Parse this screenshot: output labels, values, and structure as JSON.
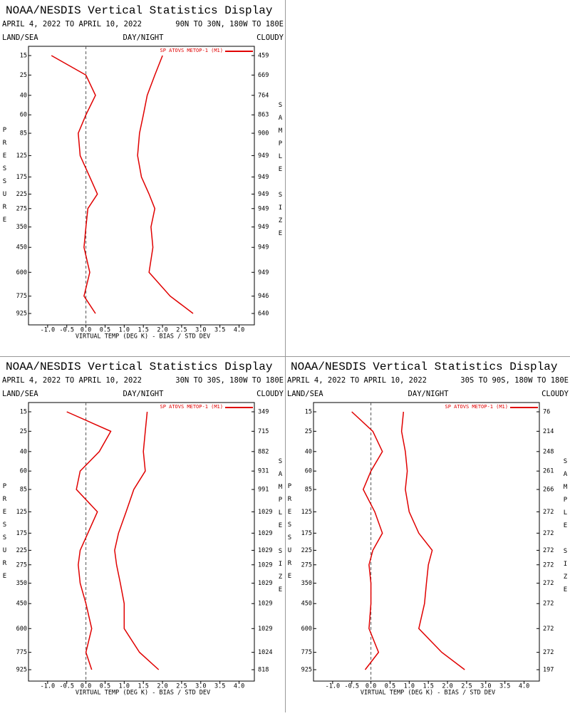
{
  "chart_data": [
    {
      "type": "line",
      "title": "NOAA/NESDIS Vertical Statistics Display",
      "subtitle": "APRIL 4, 2022 TO APRIL 10, 2022",
      "region": "90N TO 30N, 180W TO 180E",
      "left_label": "LAND/SEA",
      "center_label": "DAY/NIGHT",
      "right_label": "CLOUDY",
      "ylabel": "PRESSURE",
      "y2label": "SAMPLE SIZE",
      "xlabel": "VIRTUAL TEMP (DEG K) - BIAS / STD DEV",
      "categories": [
        15,
        25,
        40,
        60,
        85,
        125,
        175,
        225,
        275,
        350,
        450,
        600,
        775,
        925
      ],
      "sample_size": [
        459,
        669,
        764,
        863,
        900,
        949,
        949,
        949,
        949,
        949,
        949,
        949,
        946,
        640
      ],
      "series": [
        {
          "name": "SP ATOVS METOP-1 (M1)",
          "color": "#e00000",
          "values": [
            -0.9,
            0.0,
            0.25,
            0.0,
            -0.2,
            -0.15,
            0.1,
            0.3,
            0.05,
            0.0,
            -0.05,
            0.1,
            -0.05,
            0.25
          ],
          "std_dev": [
            2.0,
            1.8,
            1.6,
            1.5,
            1.4,
            1.35,
            1.45,
            1.65,
            1.8,
            1.7,
            1.75,
            1.65,
            2.2,
            2.8
          ]
        }
      ],
      "xlim": [
        -1.5,
        4.4
      ],
      "xticks": [
        {
          "value": -1,
          "label": "-1.0"
        },
        -0.5,
        {
          "value": 0,
          "label": "0.0"
        },
        0.5,
        {
          "value": 1,
          "label": "1.0"
        },
        1.5,
        {
          "value": 2,
          "label": "2.0"
        },
        2.5,
        {
          "value": 3,
          "label": "3.0"
        },
        3.5,
        {
          "value": 4,
          "label": "4.0"
        }
      ],
      "legend": "upper right"
    },
    {
      "type": "line",
      "title": "NOAA/NESDIS Vertical Statistics Display",
      "subtitle": "APRIL 4, 2022 TO APRIL 10, 2022",
      "region": "30N TO 30S, 180W TO 180E",
      "left_label": "LAND/SEA",
      "center_label": "DAY/NIGHT",
      "right_label": "CLOUDY",
      "ylabel": "PRESSURE",
      "y2label": "SAMPLE SIZE",
      "xlabel": "VIRTUAL TEMP (DEG K) - BIAS / STD DEV",
      "categories": [
        15,
        25,
        40,
        60,
        85,
        125,
        175,
        225,
        275,
        350,
        450,
        600,
        775,
        925
      ],
      "sample_size": [
        349,
        715,
        882,
        931,
        991,
        1029,
        1029,
        1029,
        1029,
        1029,
        1029,
        1029,
        1024,
        818
      ],
      "series": [
        {
          "name": "SP ATOVS METOP-1 (M1)",
          "color": "#e00000",
          "values": [
            -0.5,
            0.65,
            0.35,
            -0.15,
            -0.25,
            0.3,
            0.05,
            -0.15,
            -0.2,
            -0.15,
            0.0,
            0.15,
            0.0,
            0.15
          ],
          "std_dev": [
            1.6,
            1.55,
            1.5,
            1.55,
            1.25,
            1.05,
            0.85,
            0.75,
            0.8,
            0.9,
            1.0,
            1.0,
            1.4,
            1.9
          ]
        }
      ],
      "xlim": [
        -1.5,
        4.4
      ],
      "xticks": [
        {
          "value": -1,
          "label": "-1.0"
        },
        -0.5,
        {
          "value": 0,
          "label": "0.0"
        },
        0.5,
        {
          "value": 1,
          "label": "1.0"
        },
        1.5,
        {
          "value": 2,
          "label": "2.0"
        },
        2.5,
        {
          "value": 3,
          "label": "3.0"
        },
        3.5,
        {
          "value": 4,
          "label": "4.0"
        }
      ],
      "legend": "upper right"
    },
    {
      "type": "line",
      "title": "NOAA/NESDIS Vertical Statistics Display",
      "subtitle": "APRIL 4, 2022 TO APRIL 10, 2022",
      "region": "30S TO 90S, 180W TO 180E",
      "left_label": "LAND/SEA",
      "center_label": "DAY/NIGHT",
      "right_label": "CLOUDY",
      "ylabel": "PRESSURE",
      "y2label": "SAMPLE SIZE",
      "xlabel": "VIRTUAL TEMP (DEG K) - BIAS / STD DEV",
      "categories": [
        15,
        25,
        40,
        60,
        85,
        125,
        175,
        225,
        275,
        350,
        450,
        600,
        775,
        925
      ],
      "sample_size": [
        76,
        214,
        248,
        261,
        266,
        272,
        272,
        272,
        272,
        272,
        272,
        272,
        272,
        197
      ],
      "series": [
        {
          "name": "SP ATOVS METOP-1 (M1)",
          "color": "#e00000",
          "values": [
            -0.5,
            0.05,
            0.3,
            0.0,
            -0.2,
            0.1,
            0.3,
            0.05,
            -0.05,
            0.0,
            0.0,
            -0.05,
            0.2,
            -0.15
          ],
          "std_dev": [
            0.85,
            0.8,
            0.9,
            0.95,
            0.9,
            1.0,
            1.25,
            1.6,
            1.5,
            1.45,
            1.4,
            1.25,
            1.85,
            2.45
          ]
        }
      ],
      "xlim": [
        -1.5,
        4.4
      ],
      "xticks": [
        {
          "value": -1,
          "label": "-1.0"
        },
        -0.5,
        {
          "value": 0,
          "label": "0.0"
        },
        0.5,
        {
          "value": 1,
          "label": "1.0"
        },
        1.5,
        {
          "value": 2,
          "label": "2.0"
        },
        2.5,
        {
          "value": 3,
          "label": "3.0"
        },
        3.5,
        {
          "value": 4,
          "label": "4.0"
        }
      ],
      "legend": "upper right"
    }
  ]
}
